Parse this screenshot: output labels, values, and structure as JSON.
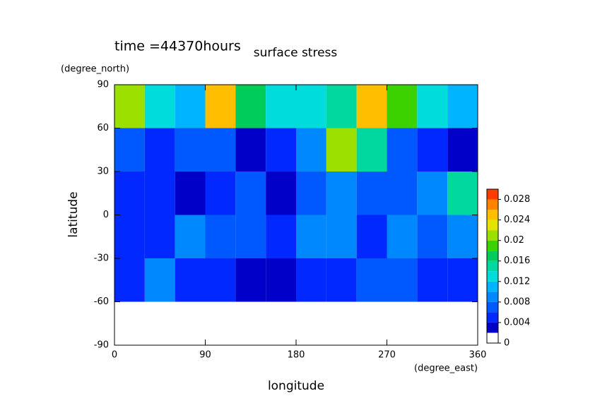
{
  "chart_data": {
    "type": "contour",
    "title": "surface stress",
    "subtitle": "time =44370hours",
    "x_label": "longitude",
    "y_label": "latitude",
    "x_unit": "(degree_east)",
    "y_unit": "(degree_north)",
    "x": [
      15,
      45,
      75,
      105,
      135,
      165,
      195,
      225,
      255,
      285,
      315,
      345
    ],
    "y": [
      75,
      45,
      15,
      -15,
      -45,
      -75
    ],
    "z": [
      [
        0.02,
        0.012,
        0.01,
        0.024,
        0.016,
        0.012,
        0.012,
        0.014,
        0.024,
        0.018,
        0.012,
        0.01
      ],
      [
        0.006,
        0.004,
        0.006,
        0.006,
        0.002,
        0.004,
        0.008,
        0.02,
        0.014,
        0.006,
        0.004,
        0.002
      ],
      [
        0.004,
        0.004,
        0.002,
        0.004,
        0.006,
        0.002,
        0.006,
        0.008,
        0.006,
        0.006,
        0.008,
        0.014
      ],
      [
        0.004,
        0.004,
        0.008,
        0.006,
        0.006,
        0.004,
        0.008,
        0.008,
        0.004,
        0.008,
        0.006,
        0.008
      ],
      [
        0.004,
        0.008,
        0.004,
        0.004,
        0.002,
        0.002,
        0.004,
        0.004,
        0.006,
        0.006,
        0.004,
        0.004
      ],
      [
        0,
        0,
        0,
        0,
        0,
        0,
        0,
        0,
        0,
        0,
        0,
        0
      ]
    ],
    "xlim": [
      0,
      360
    ],
    "xticks": [
      0,
      90,
      180,
      270,
      360
    ],
    "ylim": [
      -90,
      90
    ],
    "yticks": [
      -90,
      -60,
      -30,
      0,
      30,
      60,
      90
    ],
    "levels": [
      0,
      0.002,
      0.004,
      0.006,
      0.008,
      0.01,
      0.012,
      0.014,
      0.016,
      0.018,
      0.02,
      0.022,
      0.024,
      0.026,
      0.028,
      0.03
    ],
    "colors": [
      "#ffffff",
      "#0000c8",
      "#0028ff",
      "#0058ff",
      "#0088ff",
      "#00b4ff",
      "#00dcdc",
      "#00d8a0",
      "#00cc5a",
      "#3cd200",
      "#9ce000",
      "#e4e400",
      "#ffbe00",
      "#ff8200",
      "#ff3c00"
    ],
    "clim": [
      0,
      0.03
    ],
    "cticks": [
      0,
      0.004,
      0.008,
      0.012,
      0.016,
      0.02,
      0.024,
      0.028
    ]
  }
}
